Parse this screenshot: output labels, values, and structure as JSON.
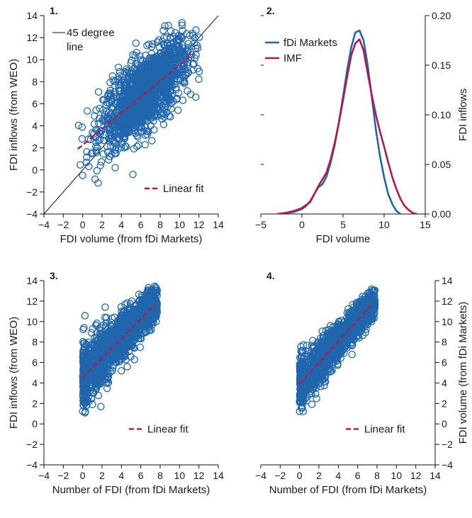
{
  "colors": {
    "blue": "#2166ac",
    "red": "#b2184e",
    "black": "#111111"
  },
  "chart_data": [
    {
      "type": "scatter",
      "panel_title": "1.",
      "xlabel": "FDI volume (from fDi Markets)",
      "ylabel": "FDI inflows (from WEO)",
      "xlim": [
        -4,
        14
      ],
      "ylim": [
        -4,
        14
      ],
      "xticks": [
        -4,
        -2,
        0,
        2,
        4,
        6,
        8,
        10,
        12,
        14
      ],
      "yticks": [
        -4,
        -2,
        0,
        2,
        4,
        6,
        8,
        10,
        12,
        14
      ],
      "y_axis_side": "left",
      "legend": [
        {
          "label": "45 degree",
          "label2": "line",
          "style": "solid-black"
        },
        {
          "label": "Linear fit",
          "style": "dashed-red"
        }
      ],
      "reference_line": {
        "name": "45 degree line",
        "x": [
          -4,
          14
        ],
        "y": [
          -4,
          14
        ]
      },
      "fit_line": {
        "name": "Linear fit",
        "x": [
          -0.5,
          11.5
        ],
        "y": [
          1.9,
          10.6
        ]
      },
      "cloud": {
        "x_range": [
          -0.5,
          12.2
        ],
        "slope": 0.72,
        "intercept": 2.3,
        "spread": 1.6,
        "count": 1500
      }
    },
    {
      "type": "line",
      "panel_title": "2.",
      "xlabel": "FDI volume",
      "ylabel": "FDI inflows",
      "xlim": [
        -5,
        15
      ],
      "ylim": [
        0,
        0.2
      ],
      "xticks": [
        -5,
        0,
        5,
        10,
        15
      ],
      "yticks": [
        0.0,
        0.05,
        0.1,
        0.15,
        0.2
      ],
      "ytick_labels": [
        "0.00",
        "0.05",
        "0.10",
        "0.15",
        "0.20"
      ],
      "y_axis_side": "right",
      "series": [
        {
          "name": "fDi Markets",
          "x": [
            -3,
            -2,
            -1,
            0,
            0.5,
            1,
            1.5,
            2,
            2.5,
            3,
            3.5,
            4,
            4.5,
            5,
            5.5,
            6,
            6.5,
            7,
            7.5,
            8,
            8.5,
            9,
            9.5,
            10,
            10.5,
            11,
            11.5,
            12
          ],
          "y": [
            0.0,
            0.001,
            0.002,
            0.005,
            0.008,
            0.013,
            0.02,
            0.027,
            0.03,
            0.038,
            0.052,
            0.07,
            0.093,
            0.118,
            0.145,
            0.168,
            0.183,
            0.185,
            0.175,
            0.15,
            0.118,
            0.085,
            0.058,
            0.037,
            0.02,
            0.01,
            0.003,
            0.0
          ]
        },
        {
          "name": "IMF",
          "x": [
            -3,
            -2,
            -1,
            0,
            1,
            1.5,
            2,
            2.5,
            3,
            3.5,
            4,
            4.5,
            5,
            5.5,
            6,
            6.5,
            7,
            7.5,
            8,
            8.5,
            9,
            9.5,
            10,
            10.5,
            11,
            11.5,
            12,
            12.5,
            13,
            13.5,
            14
          ],
          "y": [
            0.0,
            0.001,
            0.003,
            0.006,
            0.012,
            0.02,
            0.028,
            0.035,
            0.042,
            0.055,
            0.072,
            0.092,
            0.115,
            0.138,
            0.16,
            0.172,
            0.176,
            0.165,
            0.142,
            0.12,
            0.1,
            0.083,
            0.068,
            0.052,
            0.037,
            0.025,
            0.015,
            0.008,
            0.004,
            0.001,
            0.0
          ]
        }
      ]
    },
    {
      "type": "scatter",
      "panel_title": "3.",
      "xlabel": "Number of FDI (from fDi Markets)",
      "ylabel": "FDI inflows (from WEO)",
      "xlim": [
        -4,
        14
      ],
      "ylim": [
        -4,
        14
      ],
      "xticks": [
        -4,
        -2,
        0,
        2,
        4,
        6,
        8,
        10,
        12,
        14
      ],
      "yticks": [
        -4,
        -2,
        0,
        2,
        4,
        6,
        8,
        10,
        12,
        14
      ],
      "y_axis_side": "left",
      "legend": [
        {
          "label": "Linear fit",
          "style": "dashed-red"
        }
      ],
      "fit_line": {
        "name": "Linear fit",
        "x": [
          0,
          7.5
        ],
        "y": [
          4.5,
          11.7
        ]
      },
      "cloud": {
        "x_range": [
          0,
          7.7
        ],
        "slope": 0.95,
        "intercept": 4.7,
        "spread": 1.3,
        "count": 1500
      }
    },
    {
      "type": "scatter",
      "panel_title": "4.",
      "xlabel": "Number of FDI (from fDi Markets)",
      "ylabel": "FDI volume (from fDi Markets)",
      "xlim": [
        -4,
        14
      ],
      "ylim": [
        -4,
        14
      ],
      "xticks": [
        -4,
        -2,
        0,
        2,
        4,
        6,
        8,
        10,
        12,
        14
      ],
      "yticks": [
        -4,
        -2,
        0,
        2,
        4,
        6,
        8,
        10,
        12,
        14
      ],
      "y_axis_side": "right",
      "legend": [
        {
          "label": "Linear fit",
          "style": "dashed-red"
        }
      ],
      "fit_line": {
        "name": "Linear fit",
        "x": [
          0,
          7.6
        ],
        "y": [
          3.9,
          11.8
        ]
      },
      "cloud": {
        "x_range": [
          0,
          7.8
        ],
        "slope": 1.03,
        "intercept": 3.9,
        "spread": 1.0,
        "count": 1500
      }
    }
  ]
}
